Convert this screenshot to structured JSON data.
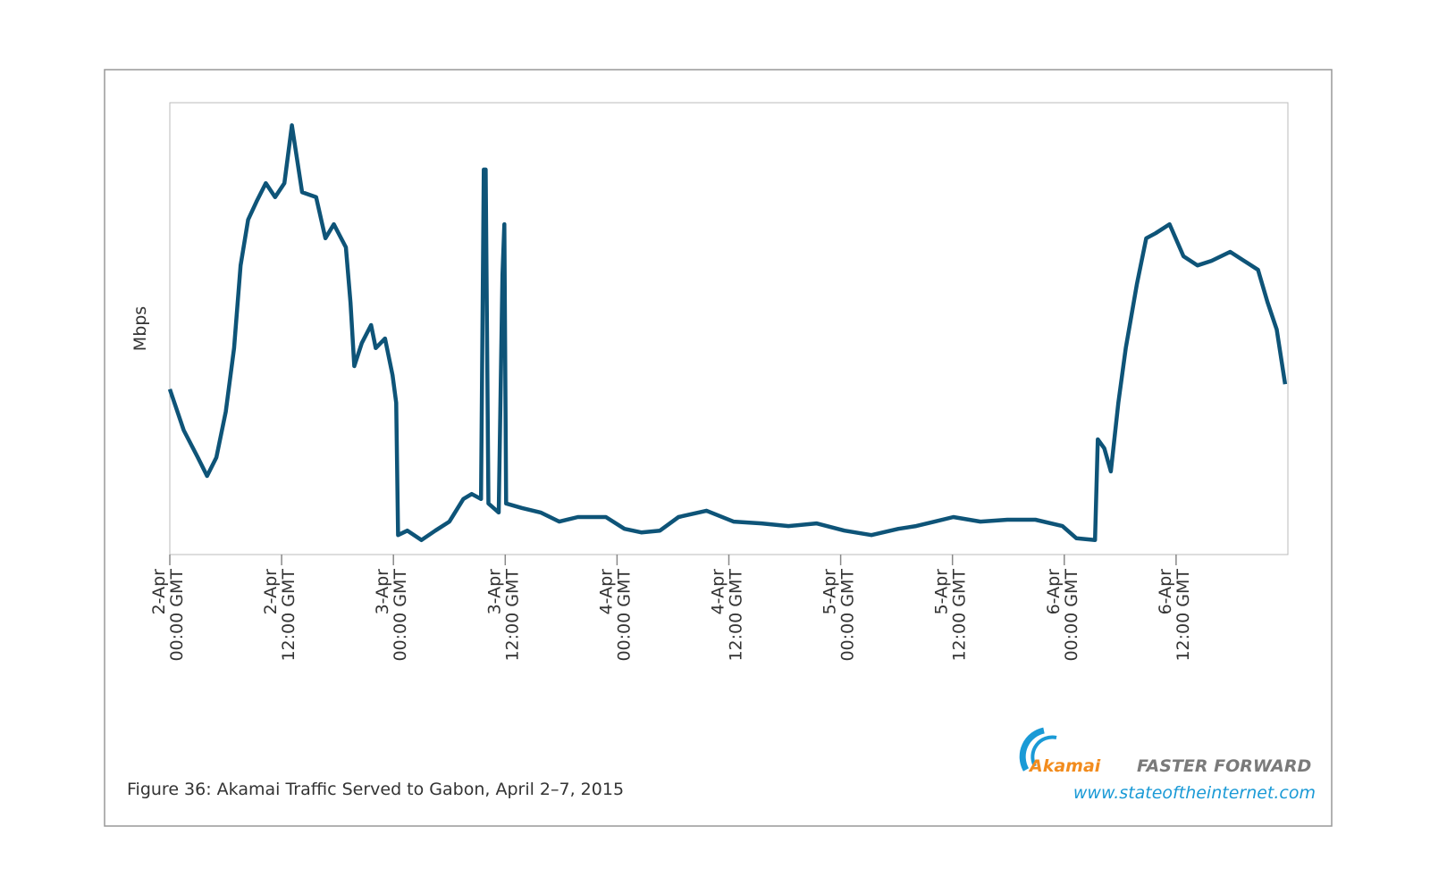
{
  "chart_data": {
    "type": "line",
    "title": "Figure 36: Akamai Traffic Served to Gabon, April 2–7, 2015",
    "y_label": "Mbps",
    "logo": "Akamai",
    "tagline": "FASTER FORWARD",
    "url": "www.stateoftheinternet.com",
    "color": "#0e5478",
    "x": [
      0,
      1.5,
      3,
      4,
      5,
      6,
      6.9,
      7.6,
      8.4,
      9.3,
      10.3,
      11.3,
      12.3,
      13.1,
      14.2,
      15.7,
      16.7,
      17.6,
      18.9,
      19.4,
      19.8,
      20.6,
      21.6,
      22.1,
      23.1,
      23.9,
      24.3,
      24.5,
      25.5,
      27,
      28.5,
      30,
      31.5,
      32.4,
      33.4,
      33.7,
      33.9,
      34.2,
      35.3,
      35.7,
      35.9,
      36.1,
      37.8,
      39.8,
      41.8,
      43.8,
      46.8,
      48.8,
      50.6,
      52.6,
      54.6,
      57.6,
      60.5,
      63.5,
      66.4,
      69.4,
      72.4,
      75.3,
      78.2,
      80.1,
      82.1,
      84.1,
      87,
      89.9,
      92.9,
      95.8,
      97.3,
      99.3,
      99.6,
      100.3,
      101,
      101.8,
      102.6,
      103.8,
      104.8,
      105.8,
      107.3,
      108.8,
      110.3,
      111.8,
      113.8,
      115.3,
      116.8,
      117.8,
      118.8,
      119.7
    ],
    "values": [
      36.6,
      27.5,
      21.5,
      17.4,
      21.5,
      31.6,
      45.7,
      64.0,
      74.1,
      78.1,
      82.2,
      79.1,
      82.2,
      95.0,
      80.2,
      79.1,
      70.0,
      73.1,
      68.0,
      55.7,
      41.7,
      46.8,
      50.8,
      45.7,
      47.8,
      39.7,
      33.6,
      4.3,
      5.3,
      3.2,
      5.3,
      7.3,
      12.3,
      13.4,
      12.3,
      85.2,
      85.2,
      11.3,
      9.3,
      61.9,
      73.1,
      11.3,
      10.3,
      9.3,
      7.3,
      8.3,
      8.3,
      5.7,
      4.9,
      5.3,
      8.3,
      9.7,
      7.3,
      6.9,
      6.3,
      6.9,
      5.3,
      4.3,
      5.7,
      6.3,
      7.3,
      8.3,
      7.3,
      7.7,
      7.7,
      6.3,
      3.6,
      3.2,
      25.5,
      23.5,
      18.4,
      33.6,
      45.7,
      59.9,
      70.0,
      71.1,
      73.1,
      66.0,
      64.0,
      65.0,
      67.0,
      65.0,
      63.0,
      55.9,
      49.8,
      37.7
    ],
    "xlim": [
      0,
      120
    ],
    "ylim": [
      0,
      100
    ],
    "xticks": [
      {
        "value": 0,
        "label": [
          "2-Apr",
          "00:00 GMT"
        ]
      },
      {
        "value": 12,
        "label": [
          "2-Apr",
          "12:00 GMT"
        ]
      },
      {
        "value": 24,
        "label": [
          "3-Apr",
          "00:00 GMT"
        ]
      },
      {
        "value": 36,
        "label": [
          "3-Apr",
          "12:00 GMT"
        ]
      },
      {
        "value": 48,
        "label": [
          "4-Apr",
          "00:00 GMT"
        ]
      },
      {
        "value": 60,
        "label": [
          "4-Apr",
          "12:00 GMT"
        ]
      },
      {
        "value": 72,
        "label": [
          "5-Apr",
          "00:00 GMT"
        ]
      },
      {
        "value": 84,
        "label": [
          "5-Apr",
          "12:00 GMT"
        ]
      },
      {
        "value": 96,
        "label": [
          "6-Apr",
          "00:00 GMT"
        ]
      },
      {
        "value": 108,
        "label": [
          "6-Apr",
          "12:00 GMT"
        ]
      }
    ]
  }
}
